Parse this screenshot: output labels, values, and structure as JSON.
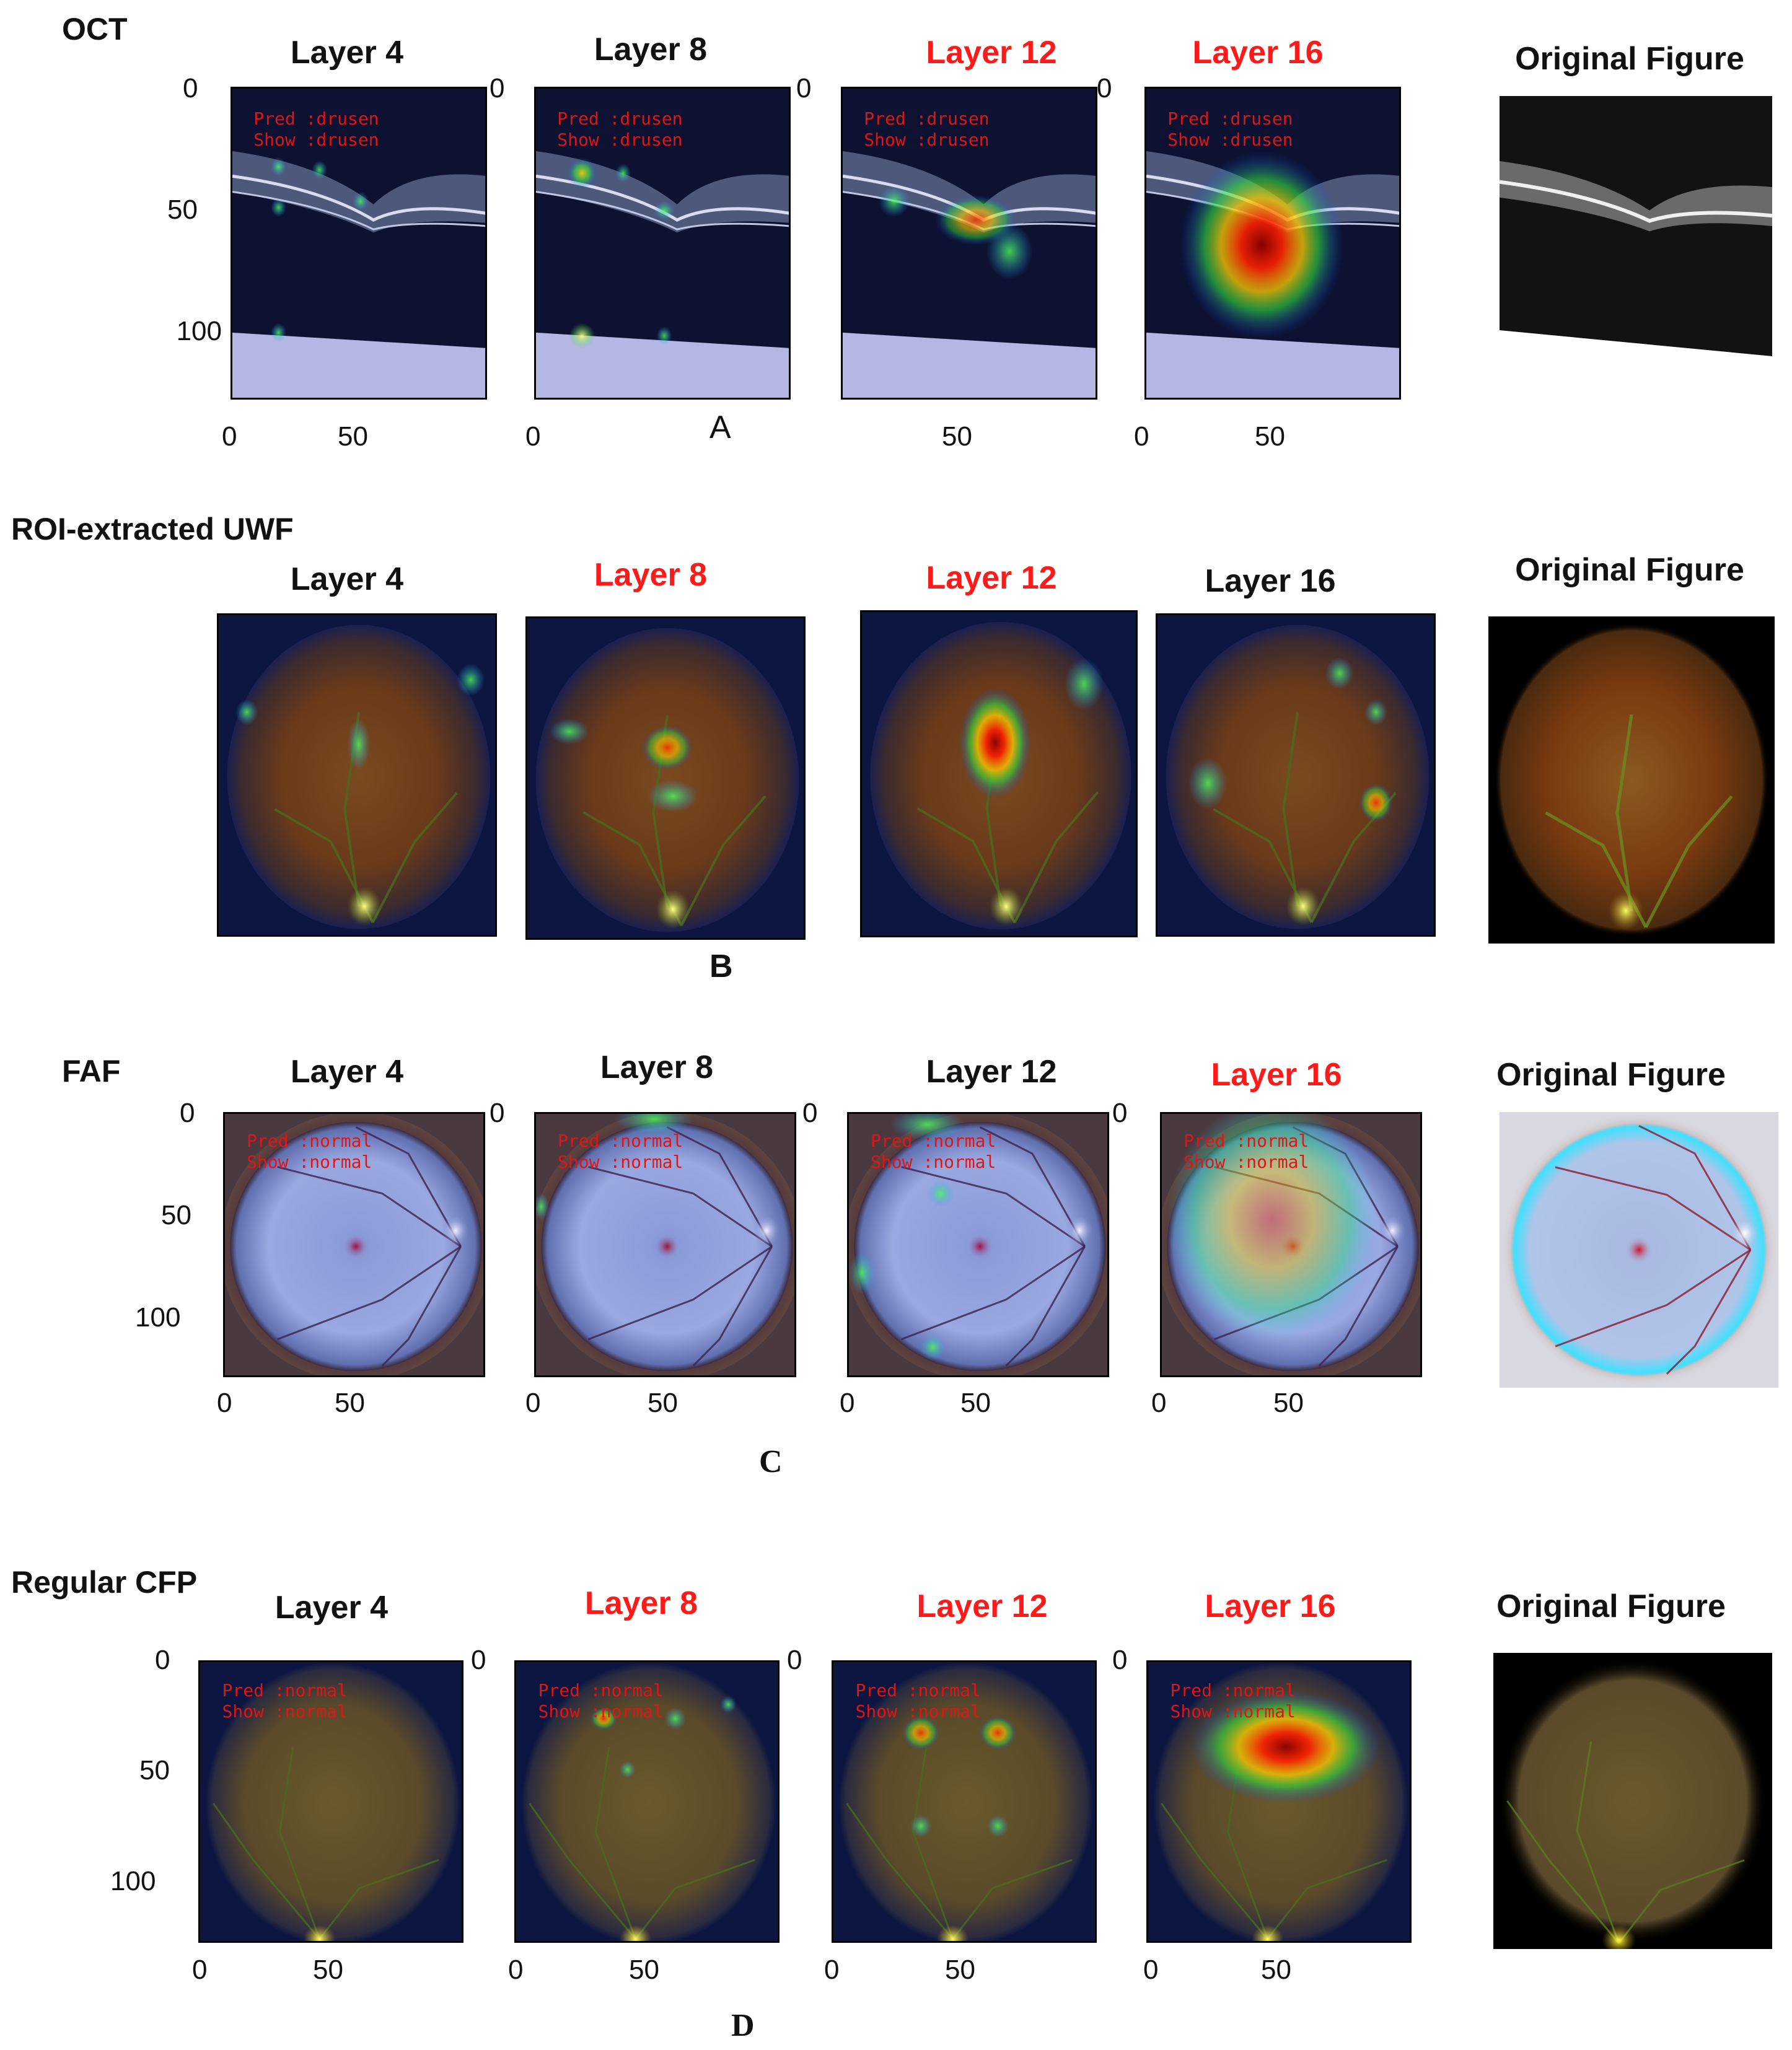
{
  "sections": [
    {
      "id": "A",
      "label": "OCT",
      "letter": "A",
      "panels": [
        {
          "title": "Layer 4",
          "color": "#111111"
        },
        {
          "title": "Layer 8",
          "color": "#111111"
        },
        {
          "title": "Layer 12",
          "color": "#ff1a1a"
        },
        {
          "title": "Layer 16",
          "color": "#ff1a1a"
        },
        {
          "title": "Original Figure",
          "color": "#111111"
        }
      ],
      "overlay": {
        "pred": "Pred :drusen",
        "show": "Show :drusen"
      },
      "yticks": [
        "0",
        "50",
        "100"
      ],
      "xticks": [
        "0",
        "50"
      ]
    },
    {
      "id": "B",
      "label": "ROI-extracted UWF",
      "letter": "B",
      "panels": [
        {
          "title": "Layer 4",
          "color": "#111111"
        },
        {
          "title": "Layer 8",
          "color": "#ff1a1a"
        },
        {
          "title": "Layer 12",
          "color": "#ff1a1a"
        },
        {
          "title": "Layer 16",
          "color": "#111111"
        },
        {
          "title": "Original Figure",
          "color": "#111111"
        }
      ]
    },
    {
      "id": "C",
      "label": "FAF",
      "letter": "C",
      "panels": [
        {
          "title": "Layer 4",
          "color": "#111111"
        },
        {
          "title": "Layer 8",
          "color": "#111111"
        },
        {
          "title": "Layer 12",
          "color": "#111111"
        },
        {
          "title": "Layer 16",
          "color": "#ff1a1a"
        },
        {
          "title": "Original Figure",
          "color": "#111111"
        }
      ],
      "overlay": {
        "pred": "Pred :normal",
        "show": "Show :normal"
      },
      "yticks": [
        "0",
        "50",
        "100"
      ],
      "xticks": [
        "0",
        "50"
      ]
    },
    {
      "id": "D",
      "label": "Regular CFP",
      "letter": "D",
      "panels": [
        {
          "title": "Layer 4",
          "color": "#111111"
        },
        {
          "title": "Layer 8",
          "color": "#ff1a1a"
        },
        {
          "title": "Layer 12",
          "color": "#ff1a1a"
        },
        {
          "title": "Layer 16",
          "color": "#ff1a1a"
        },
        {
          "title": "Original Figure",
          "color": "#111111"
        }
      ],
      "overlay": {
        "pred": "Pred :normal",
        "show": "Show :normal"
      },
      "yticks": [
        "0",
        "50",
        "100"
      ],
      "xticks": [
        "0",
        "50"
      ]
    }
  ]
}
